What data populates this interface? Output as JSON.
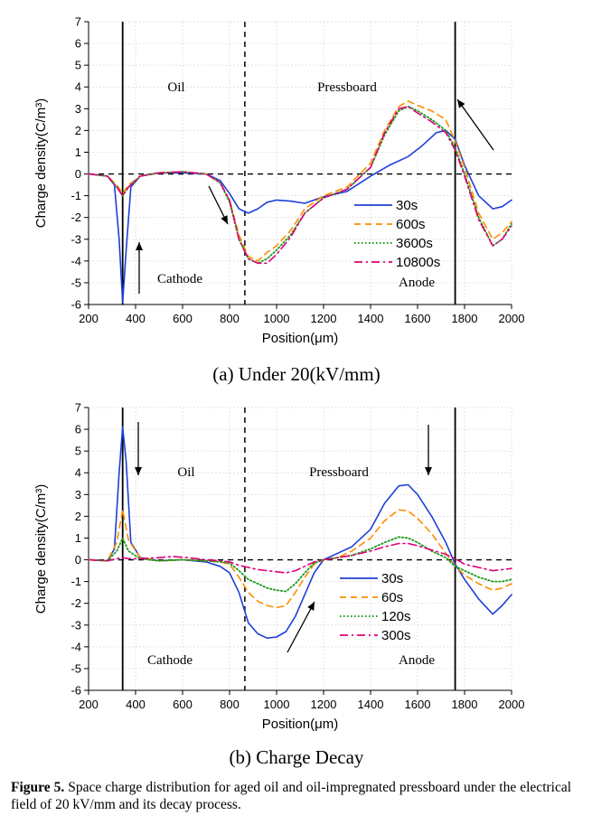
{
  "figure_caption": {
    "label": "Figure 5.",
    "text": "Space charge distribution for aged oil and oil-impregnated pressboard under the electrical field of 20 kV/mm and its decay process."
  },
  "colors": {
    "30s": "#1f3fd6",
    "600s": "#ff8c00",
    "60s": "#ff8c00",
    "3600s": "#1a9a1a",
    "120s": "#1a9a1a",
    "10800s": "#e0007a",
    "300s": "#e0007a"
  },
  "chart_data": [
    {
      "type": "line",
      "caption": "(a)  Under 20(kV/mm)",
      "xlabel": "Position(μm)",
      "ylabel": "Charge density(C/m³)",
      "xlim": [
        200,
        2000
      ],
      "ylim": [
        -6,
        7
      ],
      "xticks": [
        200,
        400,
        600,
        800,
        1000,
        1200,
        1400,
        1600,
        1800,
        2000
      ],
      "yticks": [
        -6,
        -5,
        -4,
        -3,
        -2,
        -1,
        0,
        1,
        2,
        3,
        4,
        5,
        6,
        7
      ],
      "grid": true,
      "electrode_lines_x": [
        345,
        1760
      ],
      "interface_line_x": 865,
      "labels": {
        "oil": "Oil",
        "pressboard": "Pressboard",
        "cathode": "Cathode",
        "anode": "Anode"
      },
      "legend_position": "right-lower",
      "series": [
        {
          "name": "30s",
          "style": "solid",
          "x": [
            200,
            280,
            310,
            330,
            345,
            360,
            380,
            420,
            500,
            600,
            700,
            760,
            800,
            840,
            880,
            920,
            960,
            1000,
            1060,
            1120,
            1200,
            1300,
            1400,
            1480,
            1560,
            1620,
            1680,
            1720,
            1760,
            1800,
            1860,
            1920,
            1960,
            2000
          ],
          "y": [
            0,
            -0.1,
            -0.5,
            -3.0,
            -5.9,
            -3.5,
            -0.6,
            -0.1,
            0.05,
            0.05,
            0,
            -0.3,
            -0.9,
            -1.6,
            -1.8,
            -1.6,
            -1.3,
            -1.2,
            -1.25,
            -1.35,
            -1.05,
            -0.8,
            -0.1,
            0.4,
            0.8,
            1.3,
            1.9,
            2.0,
            1.6,
            0.4,
            -1.0,
            -1.6,
            -1.5,
            -1.2
          ]
        },
        {
          "name": "600s",
          "style": "dash",
          "x": [
            200,
            280,
            320,
            345,
            370,
            420,
            500,
            600,
            700,
            760,
            800,
            840,
            880,
            920,
            960,
            1000,
            1060,
            1120,
            1200,
            1300,
            1400,
            1460,
            1520,
            1560,
            1600,
            1660,
            1720,
            1760,
            1800,
            1860,
            1920,
            1960,
            2000
          ],
          "y": [
            0,
            -0.1,
            -0.5,
            -0.9,
            -0.5,
            -0.1,
            0.05,
            0.1,
            0,
            -0.4,
            -1.2,
            -2.8,
            -3.8,
            -4.0,
            -3.6,
            -3.3,
            -2.6,
            -1.6,
            -1.0,
            -0.6,
            0.5,
            2.0,
            3.1,
            3.35,
            3.15,
            2.9,
            2.5,
            1.5,
            0.3,
            -1.8,
            -3.0,
            -2.7,
            -2.2
          ]
        },
        {
          "name": "3600s",
          "style": "dot",
          "x": [
            200,
            280,
            320,
            345,
            370,
            420,
            500,
            600,
            700,
            760,
            800,
            840,
            880,
            920,
            960,
            1000,
            1060,
            1120,
            1200,
            1300,
            1400,
            1460,
            1520,
            1560,
            1600,
            1660,
            1720,
            1760,
            1800,
            1860,
            1920,
            1960,
            2000
          ],
          "y": [
            0,
            -0.1,
            -0.6,
            -1.0,
            -0.6,
            -0.1,
            0.05,
            0.1,
            0,
            -0.4,
            -1.3,
            -3.0,
            -3.9,
            -4.1,
            -3.9,
            -3.5,
            -2.8,
            -1.8,
            -1.1,
            -0.7,
            0.3,
            1.8,
            2.9,
            3.1,
            2.9,
            2.5,
            2.0,
            1.2,
            0,
            -2.0,
            -3.3,
            -3.0,
            -2.3
          ]
        },
        {
          "name": "10800s",
          "style": "dashdot",
          "x": [
            200,
            280,
            320,
            345,
            370,
            420,
            500,
            600,
            700,
            760,
            800,
            840,
            880,
            920,
            960,
            1000,
            1060,
            1120,
            1200,
            1300,
            1400,
            1460,
            1520,
            1560,
            1600,
            1660,
            1720,
            1760,
            1800,
            1860,
            1920,
            1960,
            2000
          ],
          "y": [
            0,
            -0.1,
            -0.6,
            -1.0,
            -0.6,
            -0.1,
            0.05,
            0.1,
            0,
            -0.4,
            -1.2,
            -3.0,
            -3.9,
            -4.1,
            -4.1,
            -3.7,
            -2.9,
            -1.8,
            -1.1,
            -0.7,
            0.3,
            1.9,
            3.0,
            3.1,
            2.8,
            2.4,
            1.9,
            1.1,
            -0.1,
            -2.1,
            -3.3,
            -3.0,
            -2.4
          ]
        }
      ]
    },
    {
      "type": "line",
      "caption": "(b)  Charge Decay",
      "xlabel": "Position(μm)",
      "ylabel": "Charge density(C/m³)",
      "xlim": [
        200,
        2000
      ],
      "ylim": [
        -6,
        7
      ],
      "xticks": [
        200,
        400,
        600,
        800,
        1000,
        1200,
        1400,
        1600,
        1800,
        2000
      ],
      "yticks": [
        -6,
        -5,
        -4,
        -3,
        -2,
        -1,
        0,
        1,
        2,
        3,
        4,
        5,
        6,
        7
      ],
      "grid": true,
      "electrode_lines_x": [
        345,
        1760
      ],
      "interface_line_x": 865,
      "labels": {
        "oil": "Oil",
        "pressboard": "Pressboard",
        "cathode": "Cathode",
        "anode": "Anode"
      },
      "legend_position": "right-lower",
      "series": [
        {
          "name": "30s",
          "style": "solid",
          "x": [
            200,
            280,
            310,
            330,
            345,
            360,
            380,
            420,
            500,
            600,
            700,
            760,
            800,
            840,
            880,
            920,
            960,
            1000,
            1040,
            1080,
            1120,
            1160,
            1200,
            1260,
            1320,
            1400,
            1460,
            1520,
            1560,
            1600,
            1660,
            1720,
            1760,
            1800,
            1860,
            1920,
            1960,
            2000
          ],
          "y": [
            0,
            -0.05,
            0.5,
            4.0,
            6.1,
            4.5,
            0.8,
            0.1,
            -0.05,
            0,
            -0.1,
            -0.3,
            -0.6,
            -1.5,
            -2.9,
            -3.4,
            -3.6,
            -3.55,
            -3.3,
            -2.6,
            -1.6,
            -0.6,
            0,
            0.3,
            0.6,
            1.4,
            2.6,
            3.4,
            3.45,
            3.0,
            2.0,
            0.8,
            -0.2,
            -0.9,
            -1.8,
            -2.5,
            -2.1,
            -1.6
          ]
        },
        {
          "name": "60s",
          "style": "dash",
          "x": [
            200,
            280,
            320,
            345,
            370,
            420,
            500,
            600,
            700,
            760,
            800,
            840,
            880,
            920,
            960,
            1000,
            1040,
            1080,
            1120,
            1160,
            1200,
            1260,
            1320,
            1400,
            1460,
            1520,
            1560,
            1600,
            1660,
            1720,
            1760,
            1800,
            1860,
            1920,
            1960,
            2000
          ],
          "y": [
            0,
            -0.05,
            0.8,
            2.3,
            0.9,
            0.1,
            -0.05,
            0,
            -0.05,
            -0.1,
            -0.2,
            -0.8,
            -1.5,
            -1.9,
            -2.1,
            -2.2,
            -2.1,
            -1.5,
            -0.8,
            -0.2,
            0,
            0.1,
            0.4,
            1.0,
            1.8,
            2.3,
            2.25,
            1.9,
            1.2,
            0.3,
            -0.3,
            -0.7,
            -1.1,
            -1.4,
            -1.3,
            -1.1
          ]
        },
        {
          "name": "120s",
          "style": "dot",
          "x": [
            200,
            280,
            320,
            345,
            370,
            420,
            500,
            600,
            700,
            760,
            800,
            840,
            880,
            920,
            960,
            1000,
            1040,
            1080,
            1120,
            1160,
            1200,
            1260,
            1320,
            1400,
            1460,
            1520,
            1560,
            1600,
            1660,
            1720,
            1760,
            1800,
            1860,
            1920,
            1960,
            2000
          ],
          "y": [
            0,
            -0.05,
            0.4,
            1.0,
            0.4,
            0.05,
            -0.05,
            0,
            -0.05,
            -0.1,
            -0.15,
            -0.5,
            -0.9,
            -1.1,
            -1.3,
            -1.4,
            -1.45,
            -1.1,
            -0.6,
            -0.15,
            0,
            0.1,
            0.2,
            0.5,
            0.8,
            1.05,
            1.0,
            0.8,
            0.4,
            0.1,
            -0.3,
            -0.5,
            -0.8,
            -1.0,
            -1.0,
            -0.9
          ]
        },
        {
          "name": "300s",
          "style": "dashdot",
          "x": [
            200,
            280,
            320,
            345,
            370,
            420,
            500,
            560,
            620,
            700,
            760,
            800,
            840,
            880,
            920,
            960,
            1000,
            1040,
            1080,
            1120,
            1160,
            1200,
            1260,
            1320,
            1400,
            1460,
            1520,
            1560,
            1600,
            1660,
            1720,
            1760,
            1800,
            1860,
            1920,
            1960,
            2000
          ],
          "y": [
            0,
            -0.05,
            0.05,
            0.1,
            0.05,
            0.05,
            0.1,
            0.15,
            0.1,
            0,
            -0.05,
            -0.1,
            -0.25,
            -0.35,
            -0.45,
            -0.5,
            -0.55,
            -0.6,
            -0.5,
            -0.3,
            -0.1,
            0,
            0.1,
            0.2,
            0.4,
            0.6,
            0.75,
            0.75,
            0.65,
            0.45,
            0.25,
            0.05,
            -0.2,
            -0.35,
            -0.5,
            -0.45,
            -0.4
          ]
        }
      ]
    }
  ]
}
